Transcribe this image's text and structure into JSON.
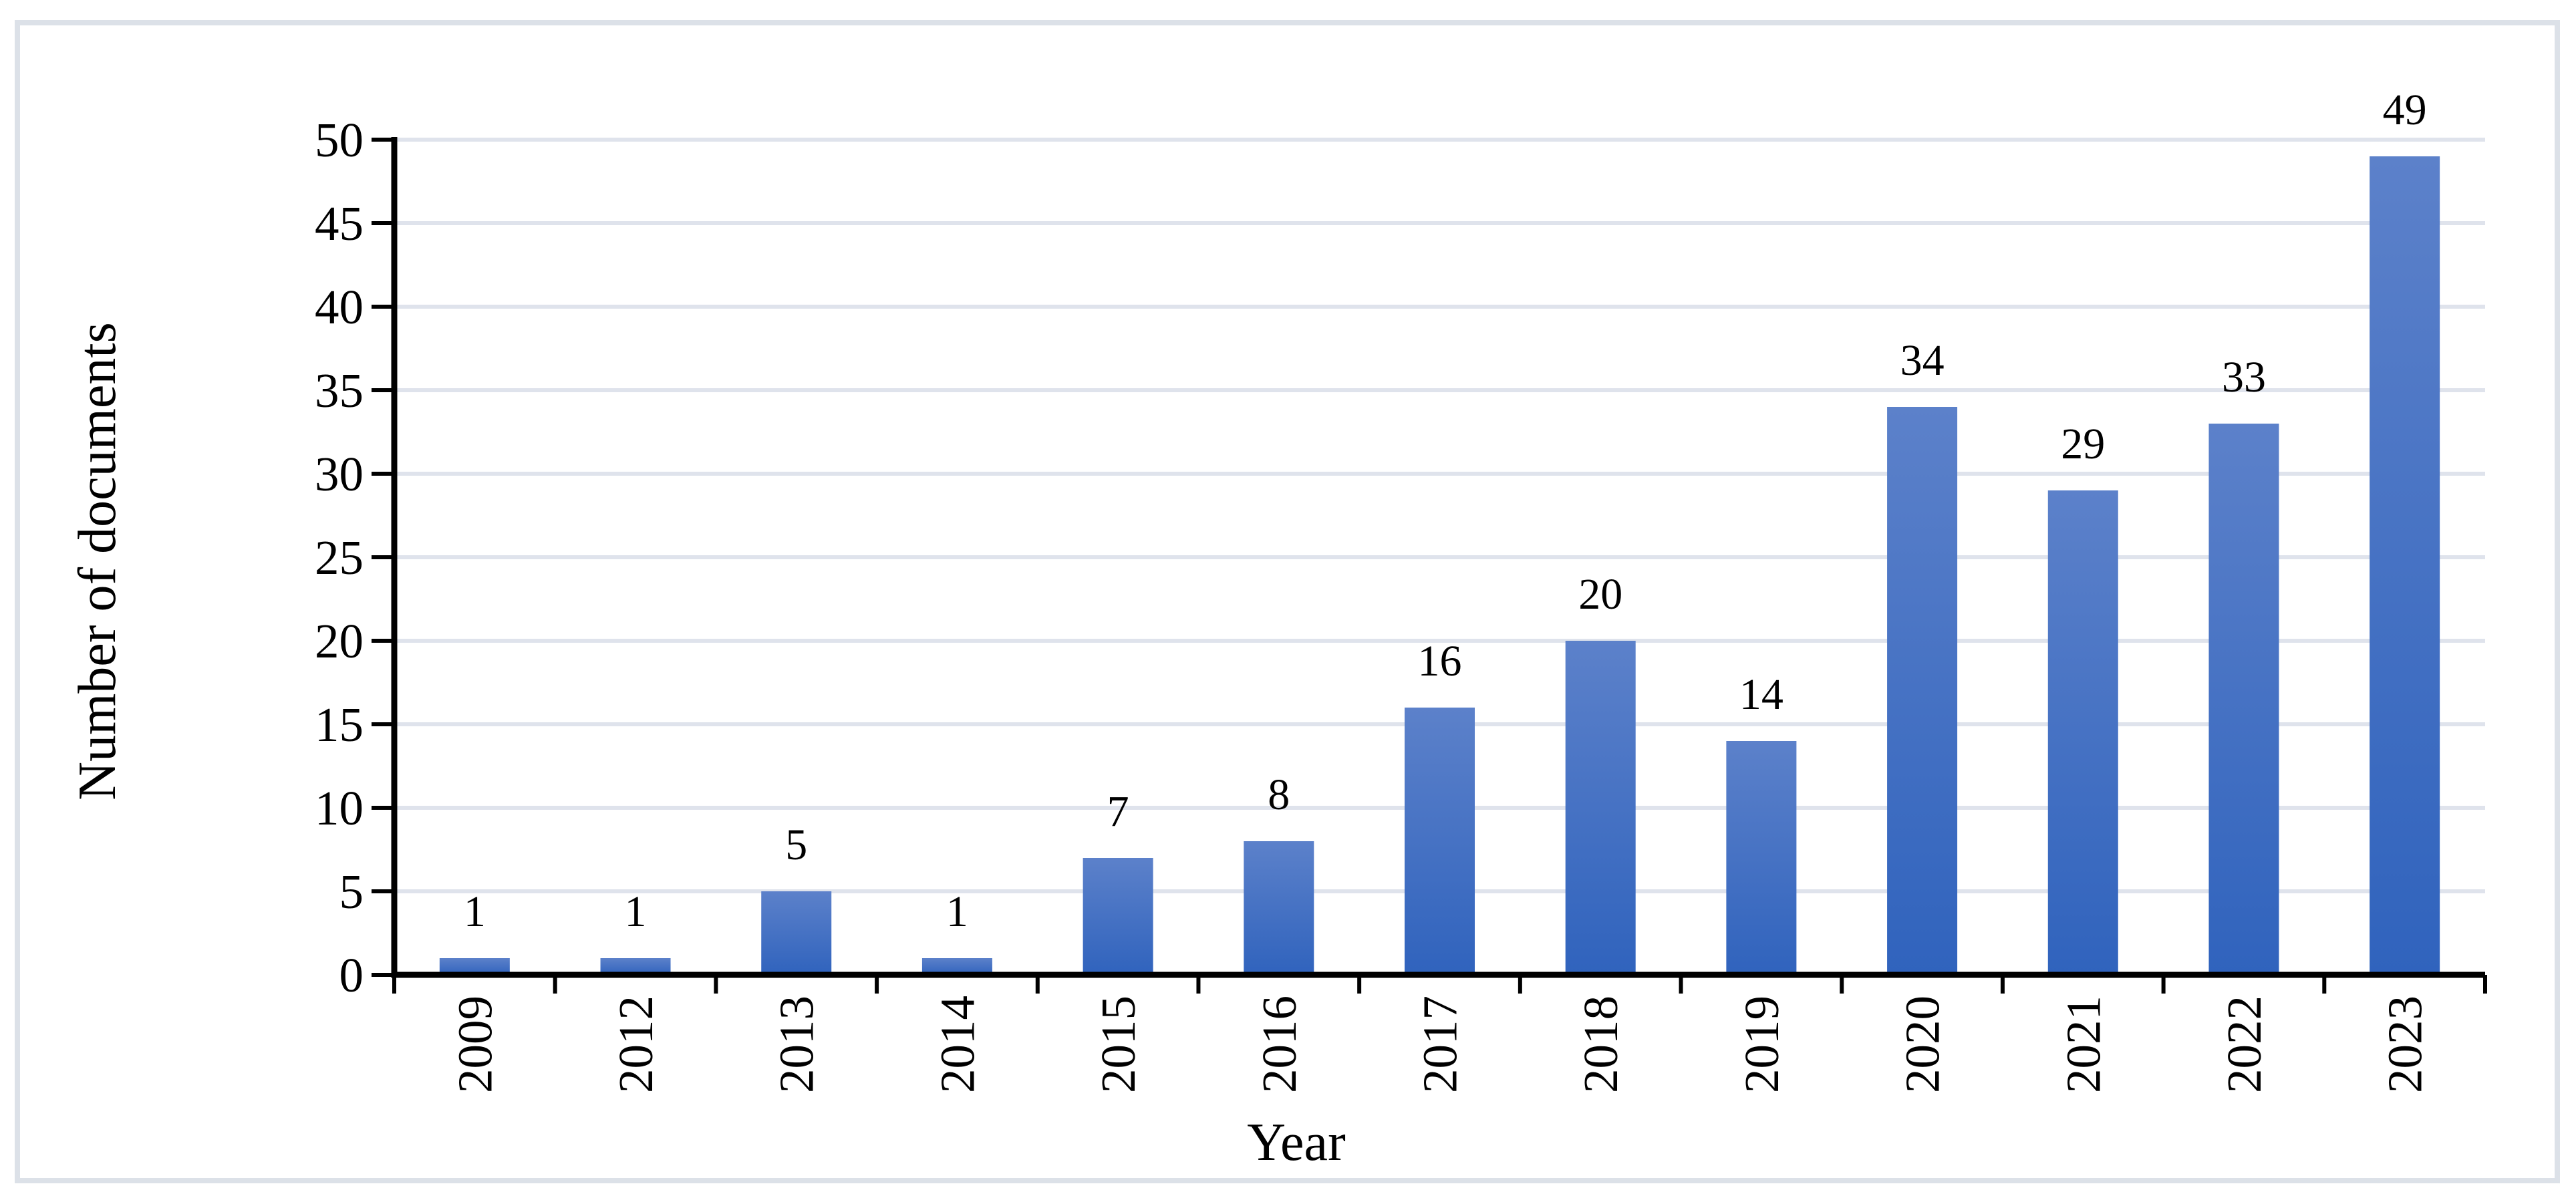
{
  "figure": {
    "background": "#FFFFFF",
    "border_color": "#DCE1E8"
  },
  "chart_data": {
    "type": "bar",
    "title": "",
    "categories": [
      "2009",
      "2012",
      "2013",
      "2014",
      "2015",
      "2016",
      "2017",
      "2018",
      "2019",
      "2020",
      "2021",
      "2022",
      "2023"
    ],
    "values": [
      1,
      1,
      5,
      1,
      7,
      8,
      16,
      20,
      14,
      34,
      29,
      33,
      49
    ],
    "data_labels": [
      1,
      1,
      5,
      1,
      7,
      8,
      16,
      20,
      14,
      34,
      29,
      33,
      49
    ],
    "xlabel": "Year",
    "ylabel": "Number of documents",
    "ylim": [
      0,
      50
    ],
    "ytick_step": 5,
    "ytick_labels": [
      "0",
      "5",
      "10",
      "15",
      "20",
      "25",
      "30",
      "35",
      "40",
      "45",
      "50"
    ],
    "grid": "horizontal",
    "legend": "none",
    "colors": {
      "bar_gradient_top": "#5C81CA",
      "bar_gradient_bottom": "#3063BD",
      "gridline": "#DFE3EC",
      "axis": "#000000",
      "text": "#000000"
    }
  }
}
